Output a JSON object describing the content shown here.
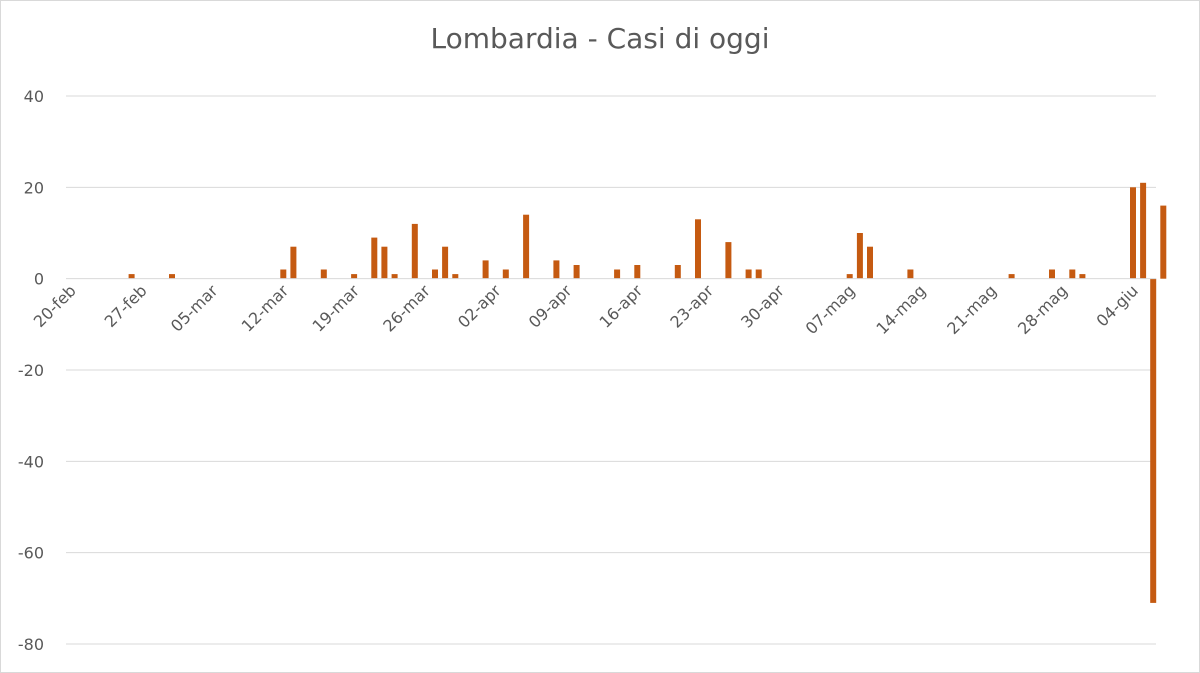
{
  "chart_data": {
    "type": "bar",
    "title": "Lombardia - Casi di oggi",
    "xlabel": "",
    "ylabel": "",
    "ylim": [
      -80,
      40
    ],
    "yticks": [
      40,
      20,
      0,
      -20,
      -40,
      -60,
      -80
    ],
    "x_start": "2020-02-20",
    "x_end": "2020-06-06",
    "x_tick_labels": [
      "20-feb",
      "27-feb",
      "05-mar",
      "12-mar",
      "19-mar",
      "26-mar",
      "02-apr",
      "09-apr",
      "16-apr",
      "23-apr",
      "30-apr",
      "07-mag",
      "14-mag",
      "21-mag",
      "28-mag",
      "04-giu"
    ],
    "grid": true,
    "legend": "none",
    "bar_color": "#c55a11",
    "series": [
      {
        "points": [
          {
            "date": "2020-02-25",
            "value": 1
          },
          {
            "date": "2020-02-29",
            "value": 1
          },
          {
            "date": "2020-03-11",
            "value": 2
          },
          {
            "date": "2020-03-12",
            "value": 7
          },
          {
            "date": "2020-03-15",
            "value": 2
          },
          {
            "date": "2020-03-18",
            "value": 1
          },
          {
            "date": "2020-03-20",
            "value": 9
          },
          {
            "date": "2020-03-21",
            "value": 7
          },
          {
            "date": "2020-03-22",
            "value": 1
          },
          {
            "date": "2020-03-24",
            "value": 12
          },
          {
            "date": "2020-03-26",
            "value": 2
          },
          {
            "date": "2020-03-27",
            "value": 7
          },
          {
            "date": "2020-03-28",
            "value": 1
          },
          {
            "date": "2020-03-31",
            "value": 4
          },
          {
            "date": "2020-04-02",
            "value": 2
          },
          {
            "date": "2020-04-04",
            "value": 14
          },
          {
            "date": "2020-04-07",
            "value": 4
          },
          {
            "date": "2020-04-09",
            "value": 3
          },
          {
            "date": "2020-04-13",
            "value": 2
          },
          {
            "date": "2020-04-15",
            "value": 3
          },
          {
            "date": "2020-04-19",
            "value": 3
          },
          {
            "date": "2020-04-21",
            "value": 13
          },
          {
            "date": "2020-04-24",
            "value": 8
          },
          {
            "date": "2020-04-26",
            "value": 2
          },
          {
            "date": "2020-04-27",
            "value": 2
          },
          {
            "date": "2020-05-06",
            "value": 1
          },
          {
            "date": "2020-05-07",
            "value": 10
          },
          {
            "date": "2020-05-08",
            "value": 7
          },
          {
            "date": "2020-05-12",
            "value": 2
          },
          {
            "date": "2020-05-22",
            "value": 1
          },
          {
            "date": "2020-05-26",
            "value": 2
          },
          {
            "date": "2020-05-28",
            "value": 2
          },
          {
            "date": "2020-05-29",
            "value": 1
          },
          {
            "date": "2020-06-03",
            "value": 20
          },
          {
            "date": "2020-06-04",
            "value": 21
          },
          {
            "date": "2020-06-05",
            "value": -71
          },
          {
            "date": "2020-06-06",
            "value": 16
          }
        ]
      }
    ]
  }
}
